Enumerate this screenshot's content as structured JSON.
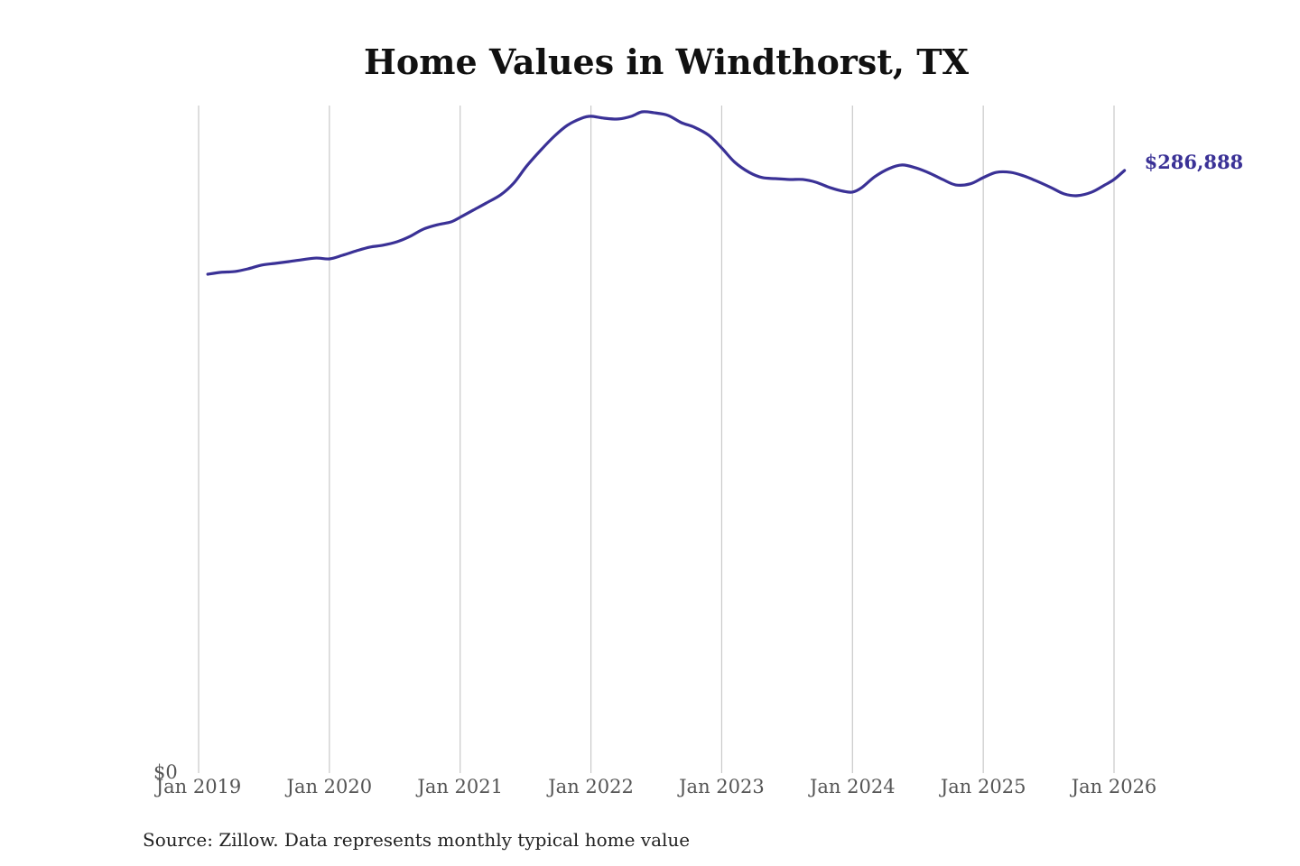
{
  "chart_data": {
    "type": "line",
    "title": "Home Values in Windthorst, TX",
    "xlabel": "",
    "ylabel": "",
    "source": "Source: Zillow. Data represents monthly typical home value",
    "x_ticks": [
      {
        "value": 2019,
        "label": "Jan 2019"
      },
      {
        "value": 2020,
        "label": "Jan 2020"
      },
      {
        "value": 2021,
        "label": "Jan 2021"
      },
      {
        "value": 2022,
        "label": "Jan 2022"
      },
      {
        "value": 2023,
        "label": "Jan 2023"
      },
      {
        "value": 2024,
        "label": "Jan 2024"
      },
      {
        "value": 2025,
        "label": "Jan 2025"
      },
      {
        "value": 2026,
        "label": "Jan 2026"
      }
    ],
    "y_ticks": [
      {
        "value": 0,
        "label": "$0"
      }
    ],
    "xlim": [
      2019,
      2026
    ],
    "ylim": [
      0,
      317800
    ],
    "grid": "vertical",
    "line_color": "#3a3196",
    "end_label": "$286,888",
    "series": [
      {
        "name": "Typical home value",
        "x": [
          2019.07,
          2019.17,
          2019.28,
          2019.38,
          2019.48,
          2019.59,
          2019.69,
          2019.79,
          2019.9,
          2020.0,
          2020.1,
          2020.21,
          2020.31,
          2020.41,
          2020.52,
          2020.62,
          2020.72,
          2020.83,
          2020.93,
          2021.0,
          2021.1,
          2021.2,
          2021.31,
          2021.41,
          2021.51,
          2021.62,
          2021.72,
          2021.82,
          2021.93,
          2022.0,
          2022.1,
          2022.21,
          2022.31,
          2022.39,
          2022.48,
          2022.59,
          2022.69,
          2022.79,
          2022.9,
          2023.0,
          2023.1,
          2023.21,
          2023.31,
          2023.41,
          2023.52,
          2023.62,
          2023.72,
          2023.83,
          2023.93,
          2024.0,
          2024.07,
          2024.17,
          2024.28,
          2024.38,
          2024.48,
          2024.59,
          2024.69,
          2024.79,
          2024.9,
          2025.0,
          2025.1,
          2025.21,
          2025.31,
          2025.41,
          2025.52,
          2025.62,
          2025.72,
          2025.83,
          2025.93,
          2026.0,
          2026.08
        ],
        "values": [
          237500,
          238400,
          238800,
          240100,
          241800,
          242700,
          243500,
          244400,
          245200,
          244800,
          246500,
          248700,
          250400,
          251300,
          253000,
          255600,
          259000,
          261100,
          262400,
          264600,
          268000,
          271400,
          275300,
          280900,
          289100,
          296800,
          303200,
          308400,
          311800,
          312700,
          311800,
          311400,
          312700,
          314800,
          314400,
          313100,
          309700,
          307500,
          303700,
          297600,
          290800,
          286000,
          283500,
          283000,
          282600,
          282600,
          281300,
          278700,
          277000,
          276600,
          278700,
          283900,
          287800,
          289500,
          288200,
          285600,
          282600,
          280000,
          280500,
          283500,
          286000,
          286000,
          284300,
          281800,
          278700,
          275700,
          274900,
          276600,
          280000,
          282600,
          286888
        ]
      }
    ]
  }
}
